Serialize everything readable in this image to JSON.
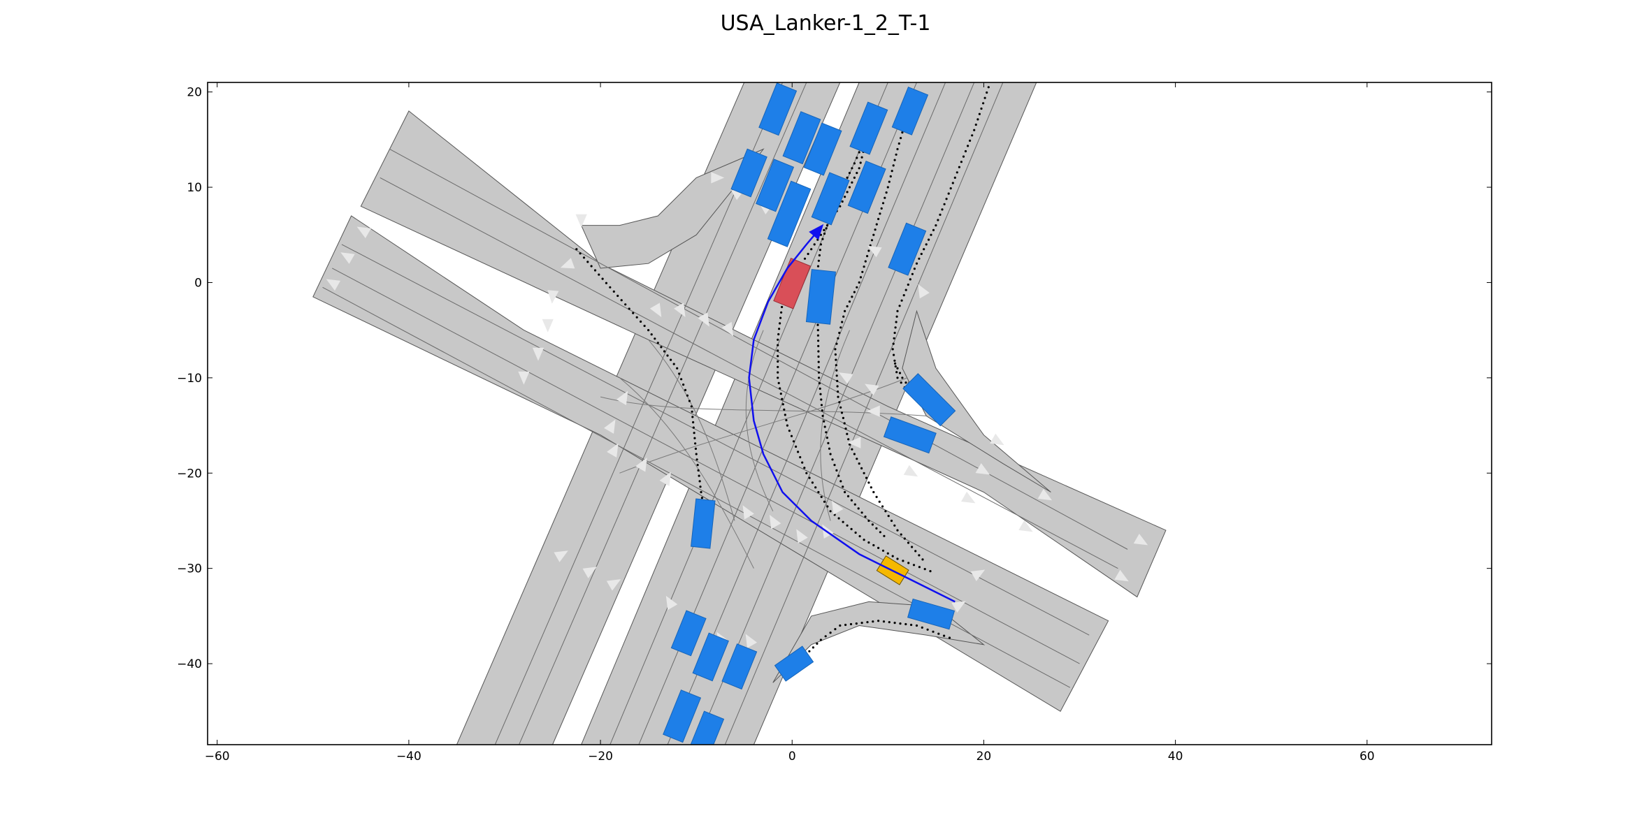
{
  "title": "USA_Lanker-1_2_T-1",
  "colors": {
    "road": "#c8c8c8",
    "road_edge": "#555555",
    "lane_line": "#e6e6e6",
    "arrow": "#e8e8e8",
    "obstacle": "#1e7fe8",
    "ego": "#d94f58",
    "goal": "#f5b800",
    "path": "#1010ee",
    "dots": "#000000"
  },
  "chart_data": {
    "type": "scatter",
    "xlim": [
      -61,
      73
    ],
    "ylim": [
      -48.5,
      21
    ],
    "x_ticks": [
      -60,
      -40,
      -20,
      0,
      20,
      40,
      60
    ],
    "y_ticks": [
      20,
      10,
      0,
      -10,
      -20,
      -30,
      -40
    ],
    "x_tick_labels": [
      "−60",
      "−40",
      "−20",
      "0",
      "20",
      "40",
      "60"
    ],
    "y_tick_labels": [
      "20",
      "10",
      "0",
      "−10",
      "−20",
      "−30",
      "−40"
    ],
    "ego_vehicle": {
      "x": 0,
      "y": -0.1,
      "length": 4.8,
      "width": 2.2,
      "angle_deg": 68
    },
    "goal_region": {
      "x": 10.5,
      "y": -30.2,
      "length": 2.8,
      "width": 1.8,
      "angle_deg": -32
    },
    "planned_path": [
      [
        17,
        -33.5
      ],
      [
        12,
        -31
      ],
      [
        7,
        -28.5
      ],
      [
        2,
        -25
      ],
      [
        -1,
        -22
      ],
      [
        -3,
        -18
      ],
      [
        -4,
        -14.5
      ],
      [
        -4.5,
        -10
      ],
      [
        -4,
        -6
      ],
      [
        -2.5,
        -2
      ],
      [
        -0.5,
        1.5
      ],
      [
        1.5,
        4
      ],
      [
        3,
        5.8
      ]
    ],
    "obstacles": [
      {
        "x": -1.5,
        "y": 18.2,
        "length": 5,
        "width": 2.2,
        "angle_deg": 68
      },
      {
        "x": 1,
        "y": 15.2,
        "length": 5,
        "width": 2.2,
        "angle_deg": 68
      },
      {
        "x": 3.2,
        "y": 14,
        "length": 5,
        "width": 2.2,
        "angle_deg": 68
      },
      {
        "x": -4.5,
        "y": 11.5,
        "length": 4.5,
        "width": 2.2,
        "angle_deg": 68
      },
      {
        "x": -1.8,
        "y": 10.2,
        "length": 5,
        "width": 2.2,
        "angle_deg": 68
      },
      {
        "x": -0.3,
        "y": 7.2,
        "length": 6.5,
        "width": 2.2,
        "angle_deg": 68
      },
      {
        "x": 4,
        "y": 8.8,
        "length": 5,
        "width": 2.2,
        "angle_deg": 68
      },
      {
        "x": 8,
        "y": 16.2,
        "length": 5,
        "width": 2.2,
        "angle_deg": 68
      },
      {
        "x": 12.3,
        "y": 18,
        "length": 4.5,
        "width": 2.2,
        "angle_deg": 68
      },
      {
        "x": 7.8,
        "y": 10,
        "length": 5,
        "width": 2.2,
        "angle_deg": 68
      },
      {
        "x": 12,
        "y": 3.5,
        "length": 5,
        "width": 2.2,
        "angle_deg": 68
      },
      {
        "x": 3,
        "y": -1.5,
        "length": 5.5,
        "width": 2.5,
        "angle_deg": 84
      },
      {
        "x": 14.3,
        "y": -12.3,
        "length": 5.5,
        "width": 2.2,
        "angle_deg": -45
      },
      {
        "x": 12.3,
        "y": -16,
        "length": 5,
        "width": 2.2,
        "angle_deg": -20
      },
      {
        "x": -9.3,
        "y": -25.3,
        "length": 5,
        "width": 2,
        "angle_deg": 84
      },
      {
        "x": 14.5,
        "y": -34.8,
        "length": 4.5,
        "width": 2,
        "angle_deg": -16
      },
      {
        "x": -10.8,
        "y": -36.8,
        "length": 4.2,
        "width": 2.2,
        "angle_deg": 68
      },
      {
        "x": -8.5,
        "y": -39.3,
        "length": 4.5,
        "width": 2.2,
        "angle_deg": 68
      },
      {
        "x": -5.5,
        "y": -40.3,
        "length": 4.2,
        "width": 2.2,
        "angle_deg": 68
      },
      {
        "x": 0.2,
        "y": -40,
        "length": 3.5,
        "width": 2,
        "angle_deg": 35
      },
      {
        "x": -11.5,
        "y": -45.5,
        "length": 5,
        "width": 2.2,
        "angle_deg": 68
      },
      {
        "x": -9,
        "y": -47.5,
        "length": 4.5,
        "width": 2.2,
        "angle_deg": 68
      }
    ],
    "dotted_trajectories": [
      [
        [
          -22.5,
          3.5
        ],
        [
          -19,
          -0.5
        ],
        [
          -15,
          -5
        ],
        [
          -12,
          -9
        ],
        [
          -10.5,
          -13
        ],
        [
          -10,
          -18
        ],
        [
          -9.5,
          -22
        ],
        [
          -9,
          -25
        ]
      ],
      [
        [
          12,
          17.5
        ],
        [
          11,
          14
        ],
        [
          10,
          10
        ],
        [
          8.5,
          5
        ],
        [
          7,
          0
        ],
        [
          5.5,
          -3
        ],
        [
          4.5,
          -7
        ],
        [
          4.8,
          -12
        ],
        [
          6,
          -17
        ],
        [
          8.5,
          -22
        ],
        [
          11,
          -26
        ],
        [
          14,
          -29.5
        ]
      ],
      [
        [
          20.5,
          20.5
        ],
        [
          19,
          16
        ],
        [
          17,
          11
        ],
        [
          15,
          6
        ],
        [
          13,
          2
        ],
        [
          11,
          -3
        ],
        [
          10.5,
          -7
        ],
        [
          11,
          -10
        ],
        [
          12.5,
          -12
        ]
      ],
      [
        [
          8,
          16
        ],
        [
          7,
          12
        ],
        [
          5,
          8
        ],
        [
          3,
          5
        ],
        [
          1,
          2
        ],
        [
          -1,
          -2
        ],
        [
          -1.5,
          -6
        ],
        [
          -1.5,
          -10
        ],
        [
          -0.5,
          -15
        ],
        [
          1.5,
          -20
        ],
        [
          4,
          -24
        ],
        [
          7.5,
          -27
        ],
        [
          11,
          -29
        ],
        [
          15,
          -30.5
        ]
      ],
      [
        [
          8,
          16
        ],
        [
          6.5,
          12.5
        ],
        [
          4.5,
          8.5
        ],
        [
          3,
          4
        ],
        [
          2.5,
          0
        ],
        [
          2.7,
          -5
        ],
        [
          2.8,
          -10
        ],
        [
          3.2,
          -14
        ],
        [
          4,
          -18
        ],
        [
          5.5,
          -22
        ],
        [
          8,
          -25
        ],
        [
          10,
          -27
        ]
      ],
      [
        [
          1,
          -39.5
        ],
        [
          3,
          -37.5
        ],
        [
          5,
          -36
        ],
        [
          9,
          -35.5
        ],
        [
          13,
          -36
        ],
        [
          17,
          -37.5
        ]
      ],
      [
        [
          13,
          -12
        ],
        [
          11.5,
          -10
        ],
        [
          10.5,
          -8
        ]
      ]
    ],
    "road_arrows": [
      {
        "x": -7.8,
        "y": 11,
        "angle_deg": 0
      },
      {
        "x": -5.5,
        "y": 9.5,
        "angle_deg": 30
      },
      {
        "x": -2.5,
        "y": 8,
        "angle_deg": 30
      },
      {
        "x": -22,
        "y": 6.5,
        "angle_deg": -90
      },
      {
        "x": -23.5,
        "y": 1.8,
        "angle_deg": 200
      },
      {
        "x": -25,
        "y": -1.5,
        "angle_deg": -95
      },
      {
        "x": -25.5,
        "y": -4.5,
        "angle_deg": -90
      },
      {
        "x": -26.5,
        "y": -7.5,
        "angle_deg": -90
      },
      {
        "x": -28,
        "y": -10,
        "angle_deg": -90
      },
      {
        "x": -44.8,
        "y": 5.5,
        "angle_deg": 150
      },
      {
        "x": -46.5,
        "y": 2.8,
        "angle_deg": 150
      },
      {
        "x": -48,
        "y": 0,
        "angle_deg": 150
      },
      {
        "x": -14,
        "y": -3,
        "angle_deg": -60
      },
      {
        "x": -11.5,
        "y": -3,
        "angle_deg": -60
      },
      {
        "x": -9,
        "y": -4,
        "angle_deg": -60
      },
      {
        "x": -6.5,
        "y": -5,
        "angle_deg": -60
      },
      {
        "x": 8.5,
        "y": 3.5,
        "angle_deg": 150
      },
      {
        "x": 13.5,
        "y": -0.8,
        "angle_deg": 120
      },
      {
        "x": 5.5,
        "y": -9.8,
        "angle_deg": 150
      },
      {
        "x": 8.2,
        "y": -11,
        "angle_deg": 150
      },
      {
        "x": 8.5,
        "y": -13.5,
        "angle_deg": 180
      },
      {
        "x": 6.5,
        "y": -16.8,
        "angle_deg": 180
      },
      {
        "x": 21.5,
        "y": -16.7,
        "angle_deg": -30
      },
      {
        "x": 20,
        "y": -19.8,
        "angle_deg": -30
      },
      {
        "x": 18.5,
        "y": -22.8,
        "angle_deg": -30
      },
      {
        "x": 26.5,
        "y": -22.5,
        "angle_deg": -30
      },
      {
        "x": 24.5,
        "y": -25.8,
        "angle_deg": -30
      },
      {
        "x": 12.5,
        "y": -20,
        "angle_deg": -30
      },
      {
        "x": 36.5,
        "y": -27.2,
        "angle_deg": -30
      },
      {
        "x": 34.5,
        "y": -31,
        "angle_deg": -30
      },
      {
        "x": 19.5,
        "y": -30.5,
        "angle_deg": 30
      },
      {
        "x": 17.5,
        "y": -33.8,
        "angle_deg": 30
      },
      {
        "x": -17.5,
        "y": -12,
        "angle_deg": 60
      },
      {
        "x": -18.8,
        "y": -15,
        "angle_deg": 60
      },
      {
        "x": -18.5,
        "y": -17.5,
        "angle_deg": 60
      },
      {
        "x": -15.5,
        "y": -19,
        "angle_deg": 60
      },
      {
        "x": -13,
        "y": -20.5,
        "angle_deg": 60
      },
      {
        "x": -24,
        "y": -28.5,
        "angle_deg": 30
      },
      {
        "x": -21,
        "y": -30.2,
        "angle_deg": 30
      },
      {
        "x": -18.5,
        "y": -31.5,
        "angle_deg": 30
      },
      {
        "x": -12.8,
        "y": -33.5,
        "angle_deg": 120
      },
      {
        "x": -4.8,
        "y": -24,
        "angle_deg": 120
      },
      {
        "x": -2,
        "y": -25,
        "angle_deg": 120
      },
      {
        "x": 0.8,
        "y": -26.5,
        "angle_deg": 120
      },
      {
        "x": 3.5,
        "y": -26,
        "angle_deg": 120
      },
      {
        "x": 4.5,
        "y": -23.5,
        "angle_deg": 120
      },
      {
        "x": -4.5,
        "y": -37.5,
        "angle_deg": 120
      },
      {
        "x": -7.5,
        "y": -37.3,
        "angle_deg": 120
      }
    ]
  }
}
